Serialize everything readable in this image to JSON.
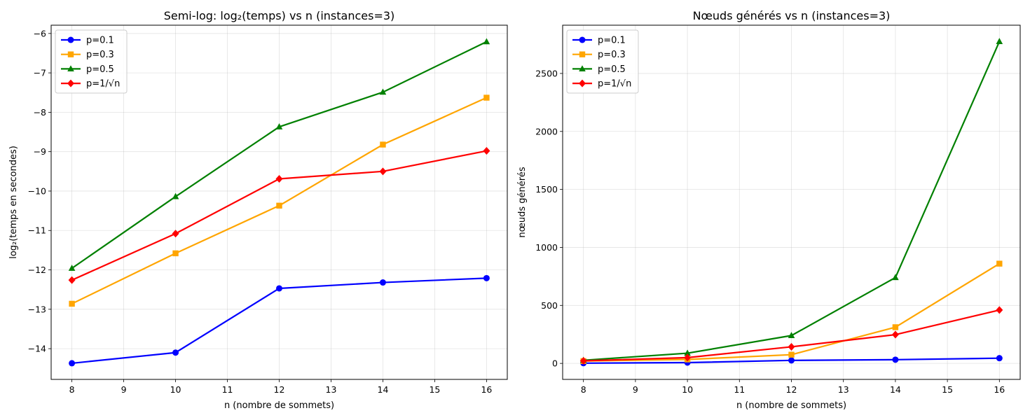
{
  "chart_data": [
    {
      "type": "line",
      "title": "Semi-log: log₂(temps) vs n (instances=3)",
      "xlabel": "n (nombre de sommets)",
      "ylabel": "log₂(temps en secondes)",
      "x": [
        8,
        10,
        12,
        14,
        16
      ],
      "xlim": [
        7.6,
        16.4
      ],
      "ylim": [
        -14.78,
        -5.79
      ],
      "xticks": [
        8,
        9,
        10,
        11,
        12,
        13,
        14,
        15,
        16
      ],
      "yticks": [
        -14,
        -13,
        -12,
        -11,
        -10,
        -9,
        -8,
        -7,
        -6
      ],
      "ytick_labels": [
        "−14",
        "−13",
        "−12",
        "−11",
        "−10",
        "−9",
        "−8",
        "−7",
        "−6"
      ],
      "grid": true,
      "legend_position": "top-left",
      "series": [
        {
          "name": "p=0.1",
          "color": "#0000ff",
          "marker": "circle",
          "values": [
            -14.37,
            -14.1,
            -12.47,
            -12.32,
            -12.21
          ]
        },
        {
          "name": "p=0.3",
          "color": "#ffa500",
          "marker": "square",
          "values": [
            -12.86,
            -11.58,
            -10.37,
            -8.82,
            -7.63
          ]
        },
        {
          "name": "p=0.5",
          "color": "#008000",
          "marker": "triangle",
          "values": [
            -11.96,
            -10.14,
            -8.37,
            -7.49,
            -6.21
          ]
        },
        {
          "name": "p=1/√n",
          "color": "#ff0000",
          "marker": "diamond",
          "values": [
            -12.26,
            -11.08,
            -9.69,
            -9.5,
            -8.98
          ]
        }
      ]
    },
    {
      "type": "line",
      "title": "Nœuds générés vs n (instances=3)",
      "xlabel": "n (nombre de sommets)",
      "ylabel": "nœuds générés",
      "x": [
        8,
        10,
        12,
        14,
        16
      ],
      "xlim": [
        7.6,
        16.4
      ],
      "ylim": [
        -138,
        2916
      ],
      "xticks": [
        8,
        9,
        10,
        11,
        12,
        13,
        14,
        15,
        16
      ],
      "yticks": [
        0,
        500,
        1000,
        1500,
        2000,
        2500
      ],
      "ytick_labels": [
        "0",
        "500",
        "1000",
        "1500",
        "2000",
        "2500"
      ],
      "grid": true,
      "legend_position": "top-left",
      "series": [
        {
          "name": "p=0.1",
          "color": "#0000ff",
          "marker": "circle",
          "values": [
            2,
            7,
            26,
            32,
            45
          ]
        },
        {
          "name": "p=0.3",
          "color": "#ffa500",
          "marker": "square",
          "values": [
            20,
            34,
            75,
            312,
            860
          ]
        },
        {
          "name": "p=0.5",
          "color": "#008000",
          "marker": "triangle",
          "values": [
            27,
            88,
            240,
            740,
            2775
          ]
        },
        {
          "name": "p=1/√n",
          "color": "#ff0000",
          "marker": "diamond",
          "values": [
            22,
            50,
            143,
            248,
            460
          ]
        }
      ]
    }
  ]
}
